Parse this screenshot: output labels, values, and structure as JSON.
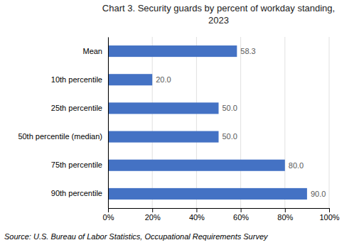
{
  "chart_data": {
    "type": "bar",
    "orientation": "horizontal",
    "title": "Chart 3. Security guards by percent of workday standing,\n2023",
    "categories": [
      "Mean",
      "10th percentile",
      "25th percentile",
      "50th percentile (median)",
      "75th percentile",
      "90th percentile"
    ],
    "values": [
      58.3,
      20.0,
      50.0,
      50.0,
      80.0,
      90.0
    ],
    "value_labels": [
      "58.3",
      "20.0",
      "50.0",
      "50.0",
      "80.0",
      "90.0"
    ],
    "data_labels": true,
    "color": "#4472C4",
    "xlim": [
      0,
      100
    ],
    "xticks": [
      {
        "value": 0,
        "label": "0%"
      },
      {
        "value": 20,
        "label": "20%"
      },
      {
        "value": 40,
        "label": "40%"
      },
      {
        "value": 60,
        "label": "60%"
      },
      {
        "value": 80,
        "label": "80%"
      },
      {
        "value": 100,
        "label": "100%"
      }
    ],
    "grid": true,
    "annotations": [
      "Source: U.S. Bureau of Labor Statistics, Occupational Requirements Survey"
    ]
  }
}
